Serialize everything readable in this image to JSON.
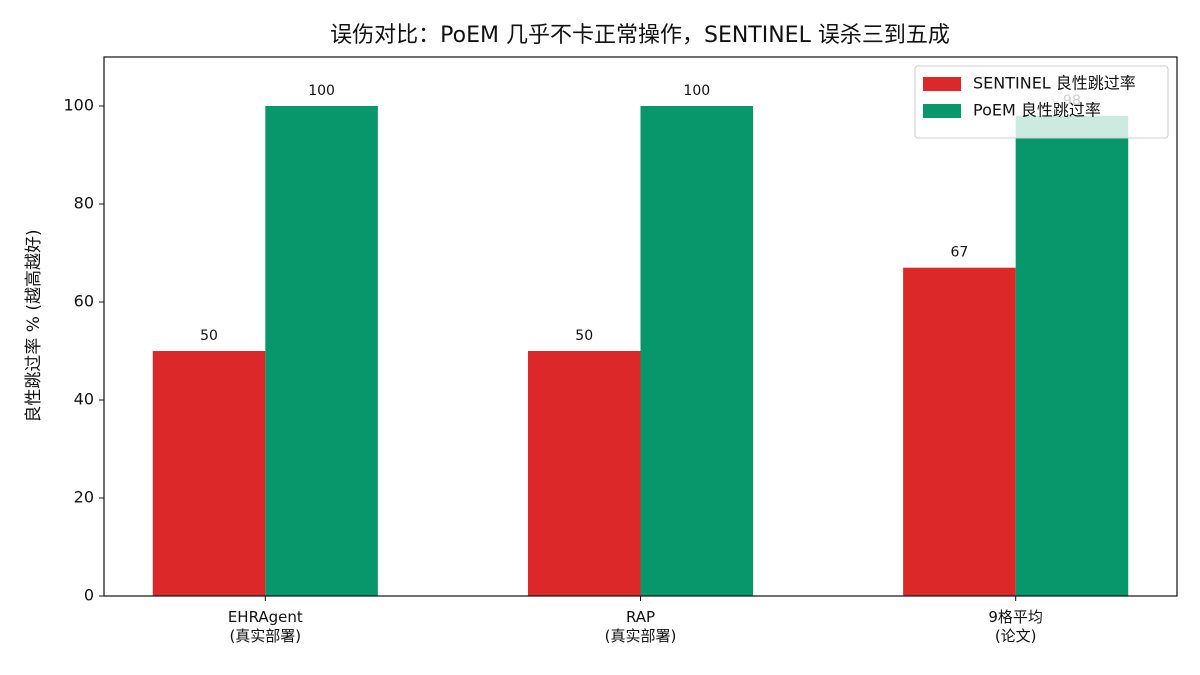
{
  "chart_data": {
    "type": "bar",
    "title": "误伤对比：PoEM 几乎不卡正常操作，SENTINEL 误杀三到五成",
    "y_label": "良性跳过率 % (越高越好)",
    "categories": [
      "EHRAgent\n(真实部署)",
      "RAP\n(真实部署)",
      "9格平均\n(论文)"
    ],
    "series": [
      {
        "name": "SENTINEL 良性跳过率",
        "color": "#dc2828",
        "values": [
          50,
          50,
          67
        ]
      },
      {
        "name": "PoEM 良性跳过率",
        "color": "#07976a",
        "values": [
          100,
          100,
          98
        ]
      }
    ],
    "ylim": [
      0,
      110
    ],
    "yticks": [
      0,
      20,
      40,
      60,
      80,
      100
    ],
    "grid": false,
    "legend": "upper right",
    "value_labels_shown": true
  }
}
